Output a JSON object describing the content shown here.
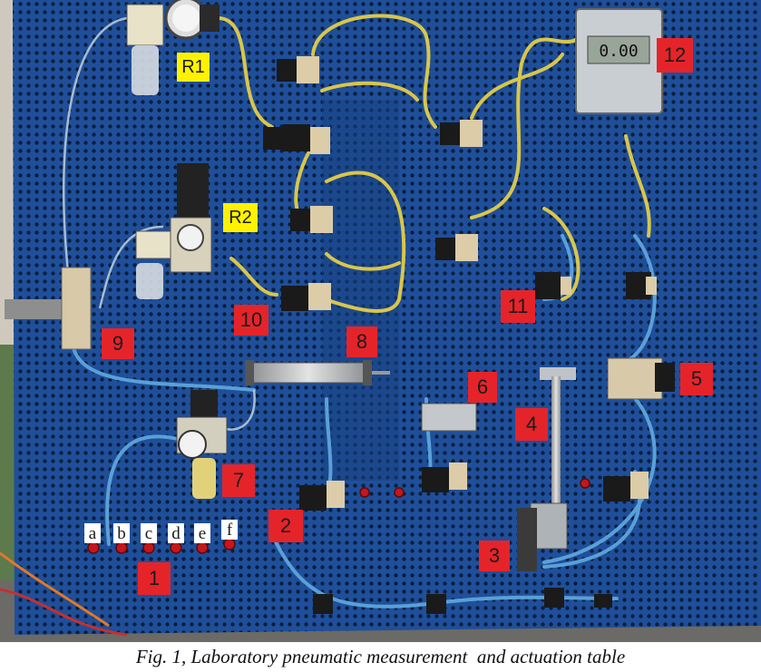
{
  "figure": {
    "caption": "Fig. 1, Laboratory pneumatic measurement  and actuation table",
    "labels": {
      "r1": "R1",
      "r2": "R2",
      "n1": "1",
      "n2": "2",
      "n3": "3",
      "n4": "4",
      "n5": "5",
      "n6": "6",
      "n7": "7",
      "n8": "8",
      "n9": "9",
      "n10": "10",
      "n11": "11",
      "n12": "12",
      "a": "a",
      "b": "b",
      "c": "c",
      "d": "d",
      "e": "e",
      "f": "f"
    },
    "display_readout": "0.00",
    "colors": {
      "panel_blue": "#1f4f9a",
      "hose_yellow": "#d9c64a",
      "hose_blue": "#5aa0d8",
      "tag_red": "#e5242a",
      "tag_yellow": "#fff200"
    }
  }
}
